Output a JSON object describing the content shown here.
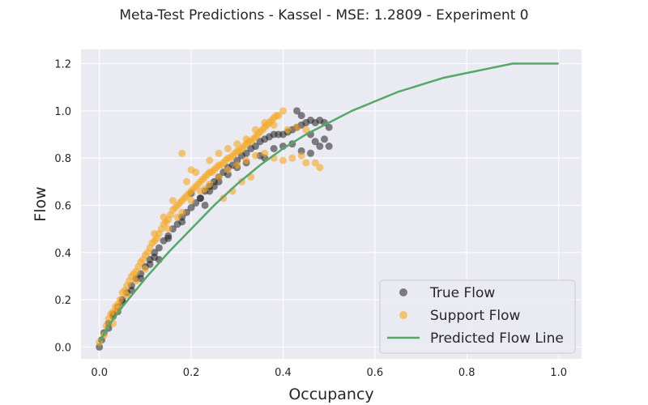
{
  "chart_data": {
    "type": "scatter",
    "title": "Meta-Test Predictions - Kassel - MSE: 1.2809 - Experiment 0",
    "xlabel": "Occupancy",
    "ylabel": "Flow",
    "xlim": [
      -0.04,
      1.05
    ],
    "ylim": [
      -0.05,
      1.26
    ],
    "x_ticks": [
      0.0,
      0.2,
      0.4,
      0.6,
      0.8,
      1.0
    ],
    "x_tick_labels": [
      "0.0",
      "0.2",
      "0.4",
      "0.6",
      "0.8",
      "1.0"
    ],
    "y_ticks": [
      0.0,
      0.2,
      0.4,
      0.6,
      0.8,
      1.0,
      1.2
    ],
    "y_tick_labels": [
      "0.0",
      "0.2",
      "0.4",
      "0.6",
      "0.8",
      "1.0",
      "1.2"
    ],
    "grid": true,
    "legend_position": "lower-right",
    "series": [
      {
        "name": "True Flow",
        "kind": "scatter",
        "color": "#1f1f1f",
        "opacity": 0.55,
        "points": [
          [
            0.0,
            0.0
          ],
          [
            0.005,
            0.03
          ],
          [
            0.01,
            0.06
          ],
          [
            0.02,
            0.1
          ],
          [
            0.03,
            0.14
          ],
          [
            0.04,
            0.17
          ],
          [
            0.05,
            0.2
          ],
          [
            0.06,
            0.23
          ],
          [
            0.07,
            0.26
          ],
          [
            0.08,
            0.29
          ],
          [
            0.09,
            0.31
          ],
          [
            0.1,
            0.34
          ],
          [
            0.11,
            0.37
          ],
          [
            0.12,
            0.4
          ],
          [
            0.13,
            0.42
          ],
          [
            0.14,
            0.45
          ],
          [
            0.15,
            0.47
          ],
          [
            0.16,
            0.5
          ],
          [
            0.17,
            0.52
          ],
          [
            0.18,
            0.55
          ],
          [
            0.19,
            0.57
          ],
          [
            0.2,
            0.59
          ],
          [
            0.21,
            0.61
          ],
          [
            0.22,
            0.63
          ],
          [
            0.23,
            0.66
          ],
          [
            0.24,
            0.68
          ],
          [
            0.25,
            0.7
          ],
          [
            0.26,
            0.72
          ],
          [
            0.27,
            0.74
          ],
          [
            0.28,
            0.76
          ],
          [
            0.29,
            0.77
          ],
          [
            0.3,
            0.79
          ],
          [
            0.31,
            0.81
          ],
          [
            0.32,
            0.82
          ],
          [
            0.33,
            0.84
          ],
          [
            0.34,
            0.85
          ],
          [
            0.35,
            0.87
          ],
          [
            0.36,
            0.88
          ],
          [
            0.37,
            0.89
          ],
          [
            0.38,
            0.9
          ],
          [
            0.39,
            0.9
          ],
          [
            0.4,
            0.9
          ],
          [
            0.41,
            0.91
          ],
          [
            0.42,
            0.92
          ],
          [
            0.43,
            0.93
          ],
          [
            0.44,
            0.94
          ],
          [
            0.45,
            0.95
          ],
          [
            0.46,
            0.96
          ],
          [
            0.47,
            0.95
          ],
          [
            0.48,
            0.96
          ],
          [
            0.49,
            0.95
          ],
          [
            0.5,
            0.93
          ],
          [
            0.43,
            1.0
          ],
          [
            0.44,
            0.98
          ],
          [
            0.46,
            0.9
          ],
          [
            0.47,
            0.87
          ],
          [
            0.48,
            0.85
          ],
          [
            0.49,
            0.88
          ],
          [
            0.5,
            0.85
          ],
          [
            0.38,
            0.84
          ],
          [
            0.4,
            0.85
          ],
          [
            0.42,
            0.86
          ],
          [
            0.44,
            0.83
          ],
          [
            0.46,
            0.82
          ],
          [
            0.35,
            0.81
          ],
          [
            0.36,
            0.8
          ],
          [
            0.32,
            0.78
          ],
          [
            0.3,
            0.76
          ],
          [
            0.28,
            0.73
          ],
          [
            0.26,
            0.7
          ],
          [
            0.25,
            0.68
          ],
          [
            0.24,
            0.66
          ],
          [
            0.22,
            0.63
          ],
          [
            0.2,
            0.65
          ],
          [
            0.23,
            0.6
          ],
          [
            0.18,
            0.53
          ],
          [
            0.15,
            0.46
          ],
          [
            0.12,
            0.38
          ],
          [
            0.13,
            0.37
          ],
          [
            0.11,
            0.35
          ],
          [
            0.09,
            0.29
          ],
          [
            0.07,
            0.24
          ],
          [
            0.05,
            0.19
          ],
          [
            0.04,
            0.15
          ],
          [
            0.03,
            0.13
          ],
          [
            0.02,
            0.08
          ]
        ]
      },
      {
        "name": "Support Flow",
        "kind": "scatter",
        "color": "#f5a623",
        "opacity": 0.6,
        "points": [
          [
            0.0,
            0.02
          ],
          [
            0.01,
            0.05
          ],
          [
            0.015,
            0.09
          ],
          [
            0.02,
            0.12
          ],
          [
            0.025,
            0.14
          ],
          [
            0.03,
            0.15
          ],
          [
            0.035,
            0.17
          ],
          [
            0.04,
            0.18
          ],
          [
            0.045,
            0.2
          ],
          [
            0.05,
            0.23
          ],
          [
            0.055,
            0.24
          ],
          [
            0.06,
            0.26
          ],
          [
            0.065,
            0.28
          ],
          [
            0.07,
            0.3
          ],
          [
            0.075,
            0.31
          ],
          [
            0.08,
            0.32
          ],
          [
            0.085,
            0.34
          ],
          [
            0.09,
            0.36
          ],
          [
            0.095,
            0.37
          ],
          [
            0.1,
            0.39
          ],
          [
            0.105,
            0.4
          ],
          [
            0.11,
            0.42
          ],
          [
            0.115,
            0.44
          ],
          [
            0.12,
            0.45
          ],
          [
            0.125,
            0.46
          ],
          [
            0.13,
            0.48
          ],
          [
            0.135,
            0.5
          ],
          [
            0.14,
            0.52
          ],
          [
            0.145,
            0.53
          ],
          [
            0.15,
            0.54
          ],
          [
            0.155,
            0.56
          ],
          [
            0.16,
            0.58
          ],
          [
            0.165,
            0.59
          ],
          [
            0.17,
            0.6
          ],
          [
            0.175,
            0.61
          ],
          [
            0.18,
            0.62
          ],
          [
            0.185,
            0.63
          ],
          [
            0.19,
            0.64
          ],
          [
            0.195,
            0.65
          ],
          [
            0.2,
            0.66
          ],
          [
            0.205,
            0.67
          ],
          [
            0.21,
            0.68
          ],
          [
            0.215,
            0.69
          ],
          [
            0.22,
            0.7
          ],
          [
            0.225,
            0.71
          ],
          [
            0.23,
            0.72
          ],
          [
            0.235,
            0.73
          ],
          [
            0.24,
            0.74
          ],
          [
            0.245,
            0.74
          ],
          [
            0.25,
            0.75
          ],
          [
            0.255,
            0.76
          ],
          [
            0.26,
            0.77
          ],
          [
            0.265,
            0.77
          ],
          [
            0.27,
            0.78
          ],
          [
            0.275,
            0.79
          ],
          [
            0.28,
            0.8
          ],
          [
            0.285,
            0.8
          ],
          [
            0.29,
            0.81
          ],
          [
            0.295,
            0.82
          ],
          [
            0.3,
            0.83
          ],
          [
            0.305,
            0.83
          ],
          [
            0.31,
            0.84
          ],
          [
            0.315,
            0.85
          ],
          [
            0.32,
            0.86
          ],
          [
            0.325,
            0.87
          ],
          [
            0.33,
            0.87
          ],
          [
            0.335,
            0.88
          ],
          [
            0.34,
            0.89
          ],
          [
            0.345,
            0.9
          ],
          [
            0.35,
            0.91
          ],
          [
            0.355,
            0.92
          ],
          [
            0.36,
            0.93
          ],
          [
            0.365,
            0.94
          ],
          [
            0.37,
            0.95
          ],
          [
            0.375,
            0.96
          ],
          [
            0.38,
            0.97
          ],
          [
            0.385,
            0.98
          ],
          [
            0.39,
            0.98
          ],
          [
            0.4,
            1.0
          ],
          [
            0.12,
            0.48
          ],
          [
            0.14,
            0.55
          ],
          [
            0.16,
            0.62
          ],
          [
            0.18,
            0.57
          ],
          [
            0.2,
            0.62
          ],
          [
            0.22,
            0.66
          ],
          [
            0.24,
            0.69
          ],
          [
            0.26,
            0.72
          ],
          [
            0.28,
            0.75
          ],
          [
            0.3,
            0.77
          ],
          [
            0.32,
            0.79
          ],
          [
            0.34,
            0.81
          ],
          [
            0.36,
            0.82
          ],
          [
            0.38,
            0.8
          ],
          [
            0.4,
            0.79
          ],
          [
            0.42,
            0.8
          ],
          [
            0.44,
            0.81
          ],
          [
            0.45,
            0.78
          ],
          [
            0.47,
            0.78
          ],
          [
            0.48,
            0.76
          ],
          [
            0.33,
            0.72
          ],
          [
            0.31,
            0.7
          ],
          [
            0.29,
            0.66
          ],
          [
            0.27,
            0.63
          ],
          [
            0.23,
            0.67
          ],
          [
            0.21,
            0.74
          ],
          [
            0.19,
            0.7
          ],
          [
            0.24,
            0.79
          ],
          [
            0.26,
            0.82
          ],
          [
            0.28,
            0.84
          ],
          [
            0.3,
            0.86
          ],
          [
            0.32,
            0.88
          ],
          [
            0.34,
            0.92
          ],
          [
            0.36,
            0.95
          ],
          [
            0.38,
            0.94
          ],
          [
            0.41,
            0.92
          ],
          [
            0.43,
            0.93
          ],
          [
            0.45,
            0.92
          ],
          [
            0.1,
            0.33
          ],
          [
            0.08,
            0.28
          ],
          [
            0.06,
            0.22
          ],
          [
            0.04,
            0.16
          ],
          [
            0.03,
            0.1
          ],
          [
            0.15,
            0.5
          ],
          [
            0.17,
            0.55
          ],
          [
            0.18,
            0.82
          ],
          [
            0.2,
            0.75
          ]
        ]
      },
      {
        "name": "Predicted Flow Line",
        "kind": "line",
        "color": "#55a868",
        "points": [
          [
            0.0,
            0.02
          ],
          [
            0.02,
            0.09
          ],
          [
            0.05,
            0.17
          ],
          [
            0.1,
            0.29
          ],
          [
            0.15,
            0.4
          ],
          [
            0.2,
            0.5
          ],
          [
            0.25,
            0.6
          ],
          [
            0.3,
            0.69
          ],
          [
            0.35,
            0.77
          ],
          [
            0.4,
            0.84
          ],
          [
            0.45,
            0.9
          ],
          [
            0.5,
            0.95
          ],
          [
            0.55,
            1.0
          ],
          [
            0.6,
            1.04
          ],
          [
            0.65,
            1.08
          ],
          [
            0.7,
            1.11
          ],
          [
            0.75,
            1.14
          ],
          [
            0.8,
            1.16
          ],
          [
            0.85,
            1.18
          ],
          [
            0.9,
            1.2
          ],
          [
            0.95,
            1.2
          ],
          [
            1.0,
            1.2
          ]
        ]
      }
    ]
  },
  "colors": {
    "plot_background": "#eaeaf2",
    "grid": "#ffffff",
    "legend_background": "#eaeaf2",
    "legend_border": "#cccccc"
  }
}
